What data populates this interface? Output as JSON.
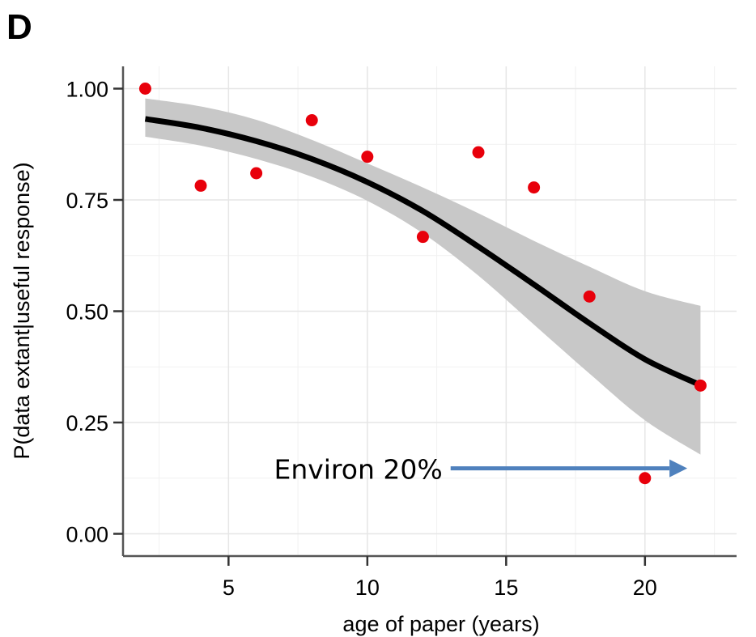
{
  "panel_label": "D",
  "chart_data": {
    "type": "scatter",
    "xlabel": "age of paper (years)",
    "ylabel": "P(data extant|useful response)",
    "xlim": [
      1.2,
      23.3
    ],
    "ylim": [
      -0.05,
      1.05
    ],
    "x_ticks": [
      5,
      10,
      15,
      20
    ],
    "x_tick_labels": [
      "5",
      "10",
      "15",
      "20"
    ],
    "y_ticks": [
      0,
      0.25,
      0.5,
      0.75,
      1.0
    ],
    "y_tick_labels": [
      "0.00",
      "0.25",
      "0.50",
      "0.75",
      "1.00"
    ],
    "grid": true,
    "background": "#ffffff",
    "grid_color": "#e6e6e6",
    "point_color": "#e8000b",
    "fit_color": "#000000",
    "band_color": "#c8c8c8",
    "points": {
      "x": [
        2,
        4,
        6,
        8,
        10,
        12,
        14,
        16,
        18,
        20,
        22
      ],
      "y": [
        1.0,
        0.782,
        0.81,
        0.929,
        0.847,
        0.667,
        0.857,
        0.778,
        0.533,
        0.125,
        0.333
      ]
    },
    "fit": {
      "x": [
        2,
        4,
        6,
        8,
        10,
        12,
        14,
        16,
        18,
        20,
        22
      ],
      "y": [
        0.932,
        0.912,
        0.882,
        0.842,
        0.79,
        0.725,
        0.645,
        0.56,
        0.473,
        0.392,
        0.334
      ],
      "lower": [
        0.892,
        0.872,
        0.842,
        0.802,
        0.748,
        0.675,
        0.58,
        0.47,
        0.36,
        0.255,
        0.178
      ],
      "upper": [
        0.978,
        0.96,
        0.93,
        0.885,
        0.832,
        0.778,
        0.72,
        0.658,
        0.6,
        0.545,
        0.512
      ]
    },
    "annotations": [
      {
        "text": "Environ 20%",
        "arrow_from_x": 13.0,
        "arrow_to_x": 21.0,
        "y": 0.147,
        "arrow_color": "#4f81bd"
      }
    ]
  }
}
